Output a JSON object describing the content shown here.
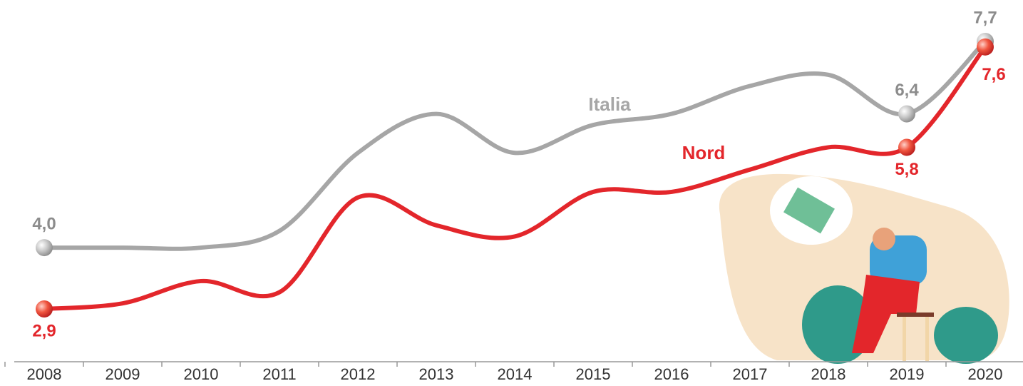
{
  "chart_data": {
    "type": "line",
    "categories": [
      "2008",
      "2009",
      "2010",
      "2011",
      "2012",
      "2013",
      "2014",
      "2015",
      "2016",
      "2017",
      "2018",
      "2019",
      "2020"
    ],
    "series": [
      {
        "name": "Italia",
        "color": "#a6a6a6",
        "values": [
          4.0,
          4.0,
          4.0,
          4.3,
          5.7,
          6.4,
          5.7,
          6.2,
          6.4,
          6.9,
          7.1,
          6.4,
          7.7
        ],
        "value_labels": [
          "4,0",
          null,
          null,
          null,
          null,
          null,
          null,
          null,
          null,
          null,
          null,
          "6,4",
          "7,7"
        ]
      },
      {
        "name": "Nord",
        "color": "#e3262b",
        "values": [
          2.9,
          3.0,
          3.4,
          3.2,
          4.9,
          4.4,
          4.2,
          5.0,
          5.0,
          5.4,
          5.8,
          5.8,
          7.6
        ],
        "value_labels": [
          "2,9",
          null,
          null,
          null,
          null,
          null,
          null,
          null,
          null,
          null,
          null,
          "5,8",
          "7,6"
        ]
      }
    ]
  }
}
